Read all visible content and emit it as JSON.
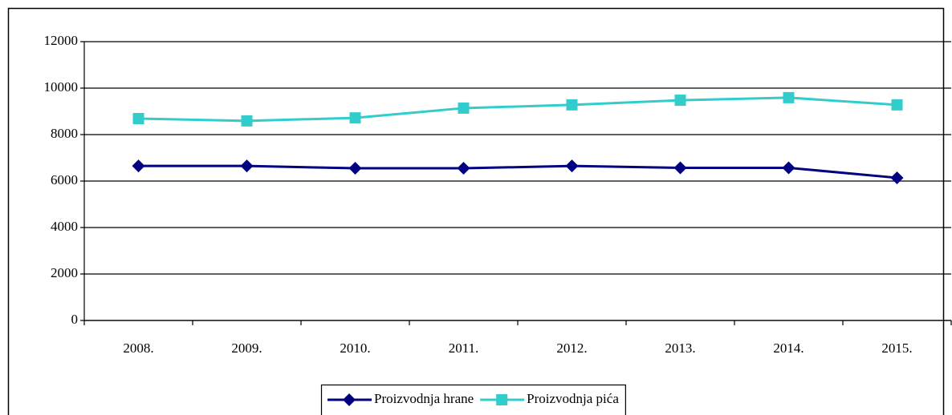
{
  "chart_data": {
    "type": "line",
    "categories": [
      "2008.",
      "2009.",
      "2010.",
      "2011.",
      "2012.",
      "2013.",
      "2014.",
      "2015."
    ],
    "series": [
      {
        "name": "Proizvodnja hrane",
        "color": "#000080",
        "marker": "diamond",
        "values": [
          6650,
          6650,
          6550,
          6550,
          6650,
          6570,
          6570,
          6140
        ]
      },
      {
        "name": "Proizvodnja pića",
        "color": "#33cccc",
        "marker": "square",
        "values": [
          8690,
          8590,
          8720,
          9140,
          9280,
          9480,
          9590,
          9280
        ]
      }
    ],
    "ylim": [
      0,
      12000
    ],
    "yticks": [
      0,
      2000,
      4000,
      6000,
      8000,
      10000,
      12000
    ],
    "grid": true,
    "legend": "bottom"
  }
}
